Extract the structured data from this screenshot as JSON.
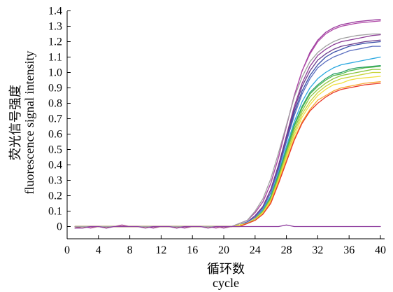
{
  "chart_data": {
    "type": "line",
    "title": "",
    "xlabel": "循环数",
    "xlabel_en": "cycle",
    "ylabel": "荧光信号强度",
    "ylabel_en": "fluorescence signal intensity",
    "xlim": [
      0,
      40
    ],
    "ylim": [
      -0.1,
      1.4
    ],
    "xticks": [
      0,
      4,
      8,
      12,
      16,
      20,
      24,
      28,
      32,
      36,
      40
    ],
    "yticks": [
      0,
      0.1,
      0.2,
      0.3,
      0.4,
      0.5,
      0.6,
      0.7,
      0.8,
      0.9,
      1.0,
      1.1,
      1.2,
      1.3,
      1.4
    ],
    "ytick_labels": [
      "0",
      "0.1",
      "0.2",
      "0.3",
      "0.4",
      "0.5",
      "0.6",
      "0.7",
      "0.8",
      "0.9",
      "1.0",
      "1.1",
      "1.2",
      "1.3",
      "1.4"
    ],
    "grid": false,
    "legend": "none",
    "x": [
      1,
      2,
      3,
      4,
      5,
      6,
      7,
      8,
      9,
      10,
      11,
      12,
      13,
      14,
      15,
      16,
      17,
      18,
      19,
      20,
      21,
      22,
      23,
      24,
      25,
      26,
      27,
      28,
      29,
      30,
      31,
      32,
      33,
      34,
      35,
      36,
      37,
      38,
      39,
      40
    ],
    "series": [
      {
        "color": "#9b3c9e",
        "values": [
          -0.01,
          0.0,
          0.0,
          0.0,
          -0.01,
          0.0,
          0.0,
          0.0,
          0.0,
          0.0,
          -0.01,
          0.0,
          0.0,
          0.0,
          -0.01,
          0.0,
          0.0,
          0.0,
          0.0,
          -0.01,
          0.0,
          0.02,
          0.04,
          0.09,
          0.16,
          0.28,
          0.45,
          0.65,
          0.85,
          1.01,
          1.13,
          1.21,
          1.26,
          1.29,
          1.31,
          1.32,
          1.33,
          1.335,
          1.34,
          1.345
        ]
      },
      {
        "color": "#b04aa8",
        "values": [
          0.0,
          0.0,
          -0.01,
          0.0,
          0.0,
          0.0,
          0.01,
          0.0,
          0.0,
          0.0,
          0.0,
          0.0,
          0.0,
          -0.01,
          0.0,
          0.0,
          0.0,
          0.0,
          -0.01,
          0.0,
          0.0,
          0.02,
          0.04,
          0.09,
          0.16,
          0.28,
          0.45,
          0.65,
          0.85,
          1.01,
          1.12,
          1.2,
          1.25,
          1.28,
          1.3,
          1.31,
          1.32,
          1.325,
          1.33,
          1.335
        ]
      },
      {
        "color": "#8c3c96",
        "values": [
          0.0,
          0.0,
          0.0,
          0.0,
          0.0,
          0.0,
          0.0,
          0.0,
          0.0,
          0.0,
          0.0,
          0.0,
          0.0,
          0.0,
          0.0,
          0.0,
          0.0,
          0.0,
          0.0,
          0.0,
          0.0,
          0.01,
          0.03,
          0.07,
          0.13,
          0.24,
          0.4,
          0.59,
          0.78,
          0.93,
          1.04,
          1.11,
          1.15,
          1.18,
          1.2,
          1.21,
          1.22,
          1.23,
          1.24,
          1.245
        ]
      },
      {
        "color": "#6a3c8c",
        "values": [
          0.0,
          0.0,
          0.0,
          0.0,
          0.0,
          0.0,
          0.0,
          0.0,
          0.0,
          0.0,
          0.0,
          0.0,
          0.0,
          0.0,
          0.0,
          0.0,
          0.0,
          0.0,
          0.0,
          0.0,
          0.0,
          0.01,
          0.03,
          0.07,
          0.13,
          0.24,
          0.4,
          0.58,
          0.76,
          0.91,
          1.01,
          1.08,
          1.12,
          1.15,
          1.17,
          1.18,
          1.19,
          1.2,
          1.205,
          1.21
        ]
      },
      {
        "color": "#3a4ea8",
        "values": [
          0.0,
          0.0,
          0.0,
          0.0,
          0.0,
          0.0,
          0.0,
          0.0,
          0.0,
          0.0,
          0.0,
          0.0,
          0.0,
          0.0,
          0.0,
          0.0,
          0.0,
          0.0,
          0.0,
          0.0,
          0.0,
          0.01,
          0.03,
          0.06,
          0.12,
          0.22,
          0.38,
          0.56,
          0.74,
          0.88,
          0.98,
          1.05,
          1.1,
          1.13,
          1.15,
          1.17,
          1.18,
          1.19,
          1.195,
          1.2
        ]
      },
      {
        "color": "#5a6ec0",
        "values": [
          0.0,
          0.0,
          0.0,
          0.0,
          0.0,
          0.0,
          0.0,
          0.0,
          0.0,
          0.0,
          0.0,
          0.0,
          0.0,
          0.0,
          0.0,
          0.0,
          0.0,
          0.0,
          0.0,
          0.0,
          0.0,
          0.01,
          0.03,
          0.06,
          0.12,
          0.22,
          0.37,
          0.55,
          0.72,
          0.86,
          0.96,
          1.03,
          1.07,
          1.1,
          1.12,
          1.14,
          1.15,
          1.16,
          1.17,
          1.17
        ]
      },
      {
        "color": "#2aa8e0",
        "values": [
          0.0,
          0.0,
          0.0,
          0.0,
          0.0,
          0.0,
          0.0,
          0.0,
          0.0,
          0.0,
          0.0,
          0.0,
          0.0,
          0.0,
          0.0,
          0.0,
          0.0,
          0.0,
          0.0,
          0.0,
          0.0,
          0.01,
          0.02,
          0.05,
          0.11,
          0.2,
          0.35,
          0.52,
          0.68,
          0.81,
          0.9,
          0.96,
          1.0,
          1.03,
          1.05,
          1.06,
          1.07,
          1.08,
          1.09,
          1.1
        ]
      },
      {
        "color": "#2fa06a",
        "values": [
          0.0,
          0.0,
          0.0,
          0.0,
          0.0,
          0.0,
          0.0,
          0.0,
          0.0,
          0.0,
          0.0,
          0.0,
          0.0,
          0.0,
          0.0,
          0.0,
          0.0,
          0.0,
          0.0,
          0.0,
          0.0,
          0.01,
          0.02,
          0.05,
          0.1,
          0.19,
          0.34,
          0.5,
          0.66,
          0.78,
          0.87,
          0.92,
          0.96,
          0.99,
          1.0,
          1.02,
          1.03,
          1.035,
          1.04,
          1.045
        ]
      },
      {
        "color": "#4cb84a",
        "values": [
          0.0,
          0.0,
          0.0,
          0.0,
          0.0,
          0.0,
          0.0,
          0.0,
          0.0,
          0.0,
          0.0,
          0.0,
          0.0,
          0.0,
          0.0,
          0.0,
          0.0,
          0.0,
          0.0,
          0.0,
          0.0,
          0.01,
          0.02,
          0.05,
          0.1,
          0.19,
          0.33,
          0.49,
          0.65,
          0.77,
          0.86,
          0.91,
          0.95,
          0.98,
          0.99,
          1.01,
          1.02,
          1.03,
          1.035,
          1.04
        ]
      },
      {
        "color": "#8cc63e",
        "values": [
          0.0,
          0.0,
          0.0,
          0.0,
          0.0,
          0.0,
          0.0,
          0.0,
          0.0,
          0.0,
          0.0,
          0.0,
          0.0,
          0.0,
          0.0,
          0.0,
          0.0,
          0.0,
          0.0,
          0.0,
          0.0,
          0.01,
          0.02,
          0.05,
          0.1,
          0.18,
          0.32,
          0.48,
          0.63,
          0.75,
          0.84,
          0.89,
          0.93,
          0.96,
          0.98,
          0.99,
          1.0,
          1.01,
          1.02,
          1.02
        ]
      },
      {
        "color": "#c8d43a",
        "values": [
          0.0,
          0.0,
          0.0,
          0.0,
          0.0,
          0.0,
          0.0,
          0.0,
          0.0,
          0.0,
          0.0,
          0.0,
          0.0,
          0.0,
          0.0,
          0.0,
          0.0,
          0.0,
          0.0,
          0.0,
          0.0,
          0.01,
          0.02,
          0.05,
          0.09,
          0.17,
          0.31,
          0.46,
          0.61,
          0.73,
          0.81,
          0.87,
          0.91,
          0.94,
          0.96,
          0.97,
          0.98,
          0.99,
          1.0,
          1.0
        ]
      },
      {
        "color": "#f0e040",
        "values": [
          0.0,
          0.0,
          0.0,
          0.0,
          0.0,
          0.0,
          0.0,
          0.0,
          0.0,
          0.0,
          0.0,
          0.0,
          0.0,
          0.0,
          0.0,
          0.0,
          0.0,
          0.0,
          0.0,
          0.0,
          0.0,
          0.01,
          0.02,
          0.04,
          0.09,
          0.17,
          0.3,
          0.45,
          0.59,
          0.71,
          0.79,
          0.85,
          0.89,
          0.92,
          0.93,
          0.95,
          0.96,
          0.965,
          0.97,
          0.975
        ]
      },
      {
        "color": "#f8a830",
        "values": [
          0.0,
          0.0,
          0.0,
          0.0,
          0.0,
          0.0,
          0.0,
          0.0,
          0.0,
          0.0,
          0.0,
          0.0,
          0.0,
          0.0,
          0.0,
          0.0,
          0.0,
          0.0,
          0.0,
          0.0,
          0.0,
          0.0,
          0.02,
          0.04,
          0.08,
          0.16,
          0.29,
          0.43,
          0.57,
          0.68,
          0.76,
          0.82,
          0.85,
          0.88,
          0.9,
          0.91,
          0.92,
          0.93,
          0.935,
          0.94
        ]
      },
      {
        "color": "#e83828",
        "values": [
          0.0,
          0.0,
          0.0,
          0.0,
          0.0,
          0.0,
          0.0,
          0.0,
          0.0,
          0.0,
          0.0,
          0.0,
          0.0,
          0.0,
          0.0,
          0.0,
          0.0,
          0.0,
          0.0,
          0.0,
          0.0,
          0.0,
          0.02,
          0.04,
          0.08,
          0.15,
          0.28,
          0.42,
          0.56,
          0.67,
          0.75,
          0.8,
          0.84,
          0.87,
          0.89,
          0.9,
          0.91,
          0.92,
          0.925,
          0.93
        ]
      },
      {
        "color": "#a0a0a0",
        "values": [
          0.0,
          0.0,
          0.0,
          0.0,
          0.0,
          0.0,
          0.0,
          0.0,
          0.0,
          0.0,
          0.0,
          0.0,
          0.0,
          0.0,
          0.0,
          0.0,
          0.0,
          0.0,
          0.0,
          0.0,
          0.0,
          0.02,
          0.04,
          0.1,
          0.18,
          0.31,
          0.48,
          0.66,
          0.84,
          0.97,
          1.07,
          1.13,
          1.17,
          1.2,
          1.22,
          1.23,
          1.24,
          1.245,
          1.25,
          1.25
        ]
      },
      {
        "color": "#9040a0",
        "values": [
          -0.01,
          -0.01,
          0.0,
          0.0,
          -0.01,
          0.0,
          0.0,
          0.0,
          0.0,
          -0.01,
          0.0,
          0.0,
          0.0,
          -0.01,
          0.0,
          0.0,
          0.0,
          -0.01,
          0.0,
          0.0,
          0.0,
          0.0,
          0.0,
          0.0,
          0.0,
          0.0,
          0.0,
          0.01,
          0.0,
          0.0,
          0.0,
          0.0,
          0.0,
          0.0,
          0.0,
          0.0,
          0.0,
          0.0,
          0.0,
          0.0
        ]
      }
    ]
  }
}
